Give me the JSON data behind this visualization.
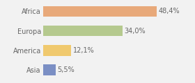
{
  "categories": [
    "Asia",
    "America",
    "Europa",
    "Africa"
  ],
  "values": [
    5.5,
    12.1,
    34.0,
    48.4
  ],
  "labels": [
    "5,5%",
    "12,1%",
    "34,0%",
    "48,4%"
  ],
  "bar_colors": [
    "#7b8fc4",
    "#f0c96e",
    "#b5c98e",
    "#e8a97a"
  ],
  "background_color": "#f2f2f2",
  "xlim": [
    0,
    63
  ],
  "label_fontsize": 7.0,
  "tick_fontsize": 7.0,
  "bar_height": 0.55
}
